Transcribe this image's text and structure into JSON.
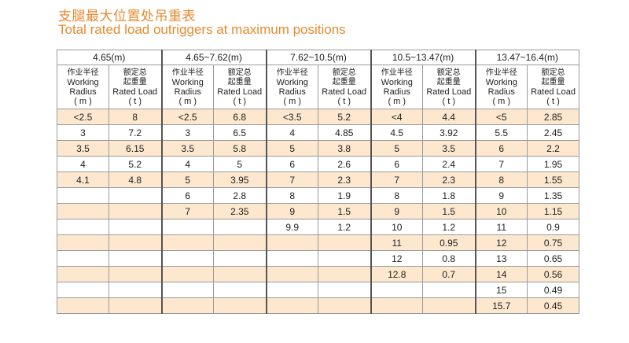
{
  "title_cn": "支腿最大位置处吊重表",
  "title_en": "Total rated load outriggers at maximum positions",
  "ranges": [
    "4.65(m)",
    "4.65~7.62(m)",
    "7.62~10.5(m)",
    "10.5~13.47(m)",
    "13.47~16.4(m)"
  ],
  "headers": {
    "radius": {
      "cn": "作业半径",
      "en1": "Working",
      "en2": "Radius",
      "unit": "( m )"
    },
    "load": {
      "cn1": "额定总",
      "cn2": "起重量",
      "en": "Rated Load",
      "unit": "( t )"
    }
  },
  "rows": [
    [
      "<2.5",
      "8",
      "<2.5",
      "6.8",
      "<3.5",
      "5.2",
      "<4",
      "4.4",
      "<5",
      "2.85"
    ],
    [
      "3",
      "7.2",
      "3",
      "6.5",
      "4",
      "4.85",
      "4.5",
      "3.92",
      "5.5",
      "2.45"
    ],
    [
      "3.5",
      "6.15",
      "3.5",
      "5.8",
      "5",
      "3.8",
      "5",
      "3.5",
      "6",
      "2.2"
    ],
    [
      "4",
      "5.2",
      "4",
      "5",
      "6",
      "2.6",
      "6",
      "2.4",
      "7",
      "1.95"
    ],
    [
      "4.1",
      "4.8",
      "5",
      "3.95",
      "7",
      "2.3",
      "7",
      "2.3",
      "8",
      "1.55"
    ],
    [
      "",
      "",
      "6",
      "2.8",
      "8",
      "1.9",
      "8",
      "1.8",
      "9",
      "1.35"
    ],
    [
      "",
      "",
      "7",
      "2.35",
      "9",
      "1.5",
      "9",
      "1.5",
      "10",
      "1.15"
    ],
    [
      "",
      "",
      "",
      "",
      "9.9",
      "1.2",
      "10",
      "1.2",
      "11",
      "0.9"
    ],
    [
      "",
      "",
      "",
      "",
      "",
      "",
      "11",
      "0.95",
      "12",
      "0.75"
    ],
    [
      "",
      "",
      "",
      "",
      "",
      "",
      "12",
      "0.8",
      "13",
      "0.65"
    ],
    [
      "",
      "",
      "",
      "",
      "",
      "",
      "12.8",
      "0.7",
      "14",
      "0.56"
    ],
    [
      "",
      "",
      "",
      "",
      "",
      "",
      "",
      "",
      "15",
      "0.49"
    ],
    [
      "",
      "",
      "",
      "",
      "",
      "",
      "",
      "",
      "15.7",
      "0.45"
    ]
  ]
}
